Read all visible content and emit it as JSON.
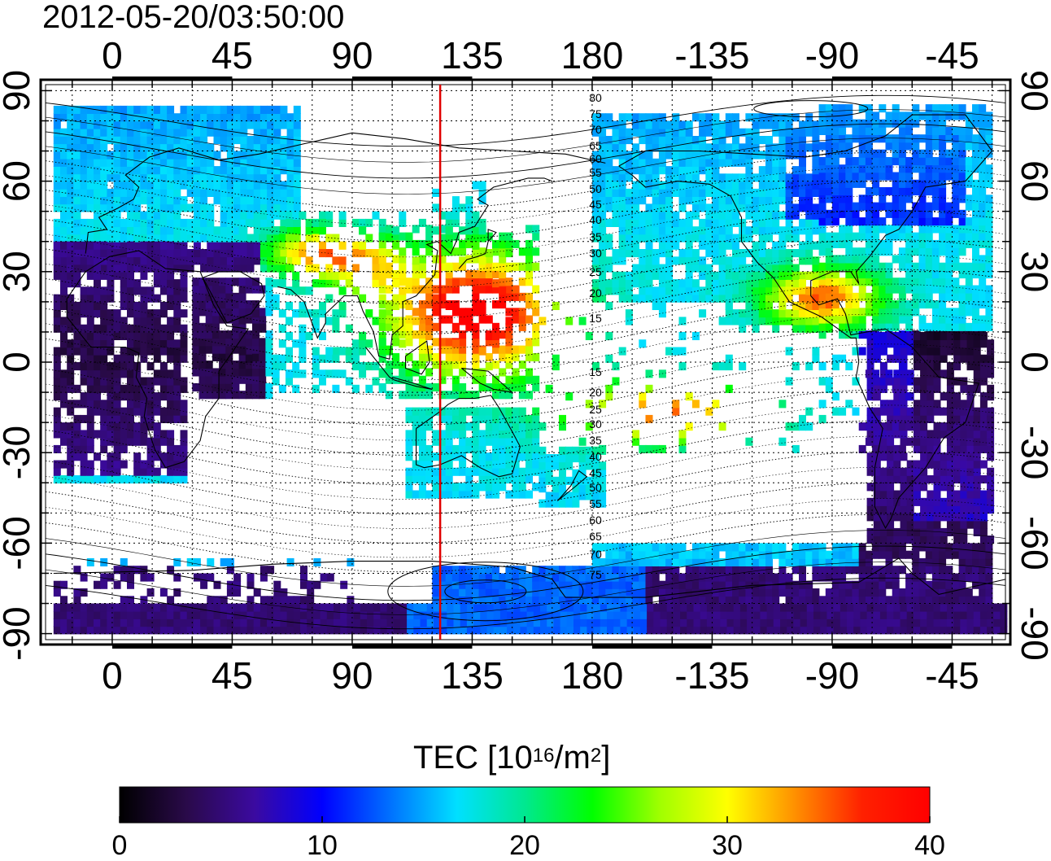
{
  "header": {
    "timestamp": "2012-05-20/03:50:00"
  },
  "map": {
    "x_tick_labels": [
      "0",
      "45",
      "90",
      "135",
      "180",
      "-135",
      "-90",
      "-45"
    ],
    "x_tick_lons": [
      0,
      45,
      90,
      135,
      180,
      225,
      270,
      315
    ],
    "y_tick_labels": [
      "90",
      "60",
      "30",
      "0",
      "-30",
      "-60",
      "-90"
    ],
    "y_tick_lats": [
      90,
      60,
      30,
      0,
      -30,
      -60,
      -90
    ],
    "lon_range": [
      -25,
      335
    ],
    "lat_range": [
      -92,
      92
    ],
    "grid_lon_step": 15,
    "grid_lat_step": 10,
    "marker_longitude": 123,
    "marker_color": "#e00000",
    "contour_labels": [
      "80",
      "75",
      "70",
      "65",
      "60",
      "55",
      "50",
      "45",
      "40",
      "35",
      "30",
      "25",
      "20",
      "15",
      "15",
      "20",
      "25",
      "30",
      "35",
      "40",
      "45",
      "50",
      "55",
      "60",
      "65",
      "70",
      "75"
    ]
  },
  "colorbar": {
    "title_main": "TEC  [10",
    "title_exp1": "16",
    "title_mid": "/m",
    "title_exp2": "2",
    "title_end": "]",
    "min": 0,
    "max": 40,
    "ticks": [
      "0",
      "10",
      "20",
      "30",
      "40"
    ],
    "tick_values": [
      0,
      10,
      20,
      30,
      40
    ],
    "colormap": [
      "#000000",
      "#2a0a4a",
      "#3b0aa0",
      "#0000ff",
      "#0070ff",
      "#00e0ff",
      "#00e890",
      "#00ff00",
      "#a0ff00",
      "#ffff00",
      "#ff9000",
      "#ff2000",
      "#ff0000"
    ]
  }
}
